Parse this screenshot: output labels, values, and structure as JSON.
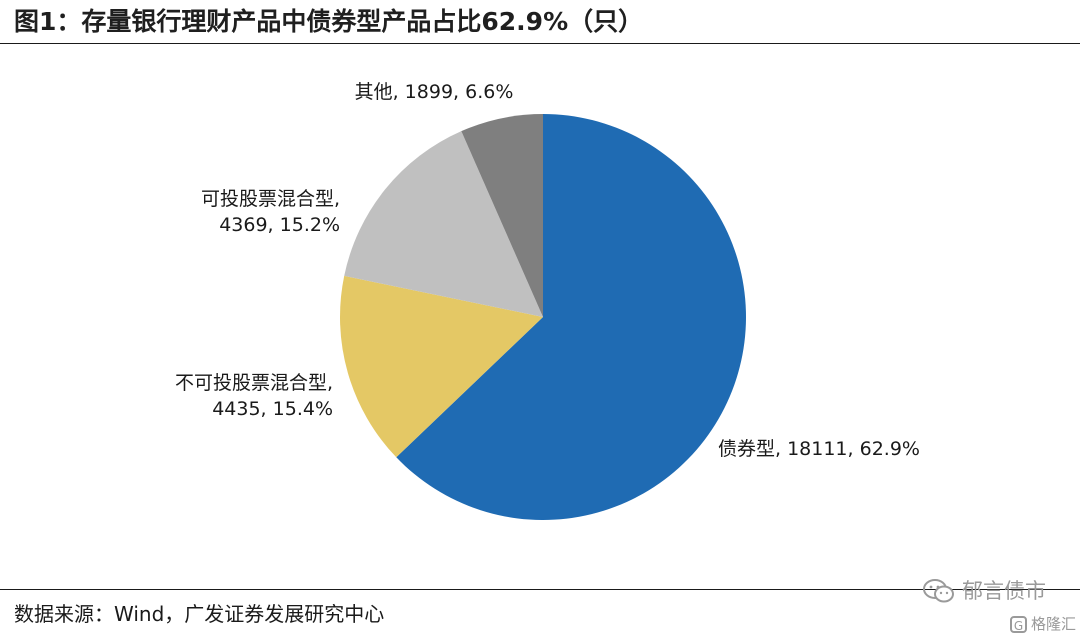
{
  "title": "图1：存量银行理财产品中债券型产品占比62.9%（只）",
  "source": "数据来源：Wind，广发证券发展研究中心",
  "watermark": {
    "text": "郁言债市",
    "sub_text": "格隆汇",
    "sub_icon_glyph": "G"
  },
  "chart_data": {
    "type": "pie",
    "unit": "只",
    "slices": [
      {
        "name": "债券型",
        "value": 18111,
        "percent": 62.9,
        "color": "#1f6bb3",
        "label_lines": [
          "债券型, 18111, 62.9%"
        ]
      },
      {
        "name": "不可投股票混合型",
        "value": 4435,
        "percent": 15.4,
        "color": "#e4c865",
        "label_lines": [
          "不可投股票混合型,",
          "4435, 15.4%"
        ]
      },
      {
        "name": "可投股票混合型",
        "value": 4369,
        "percent": 15.2,
        "color": "#c0c0c0",
        "label_lines": [
          "可投股票混合型,",
          "4369, 15.2%"
        ]
      },
      {
        "name": "其他",
        "value": 1899,
        "percent": 6.6,
        "color": "#7f7f7f",
        "label_lines": [
          "其他, 1899, 6.6%"
        ]
      }
    ],
    "start_angle": "12 o'clock",
    "direction": "clockwise",
    "legend": "none"
  }
}
